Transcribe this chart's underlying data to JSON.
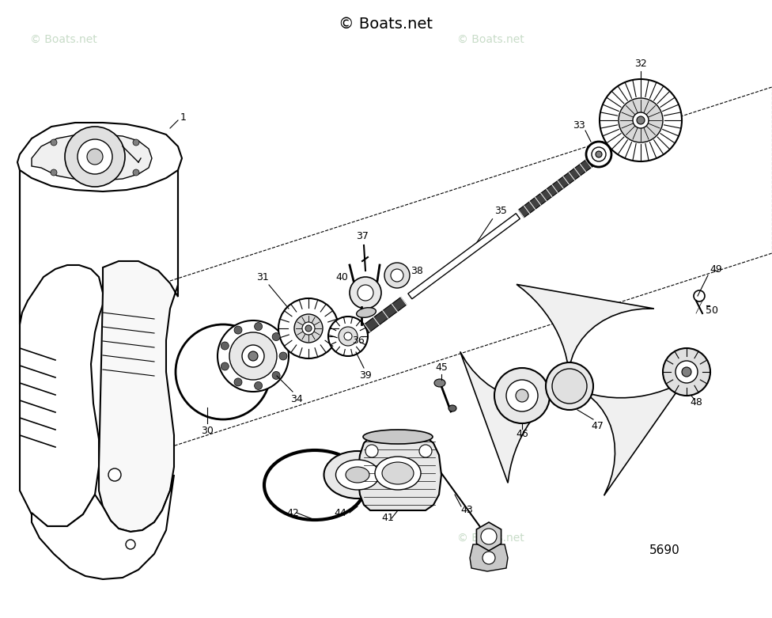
{
  "title": "© Boats.net",
  "bg_color": "#ffffff",
  "watermark_color": "#c8dcc8",
  "watermark_text": "© Boats.net",
  "fig_w": 9.76,
  "fig_h": 7.81,
  "dpi": 100
}
